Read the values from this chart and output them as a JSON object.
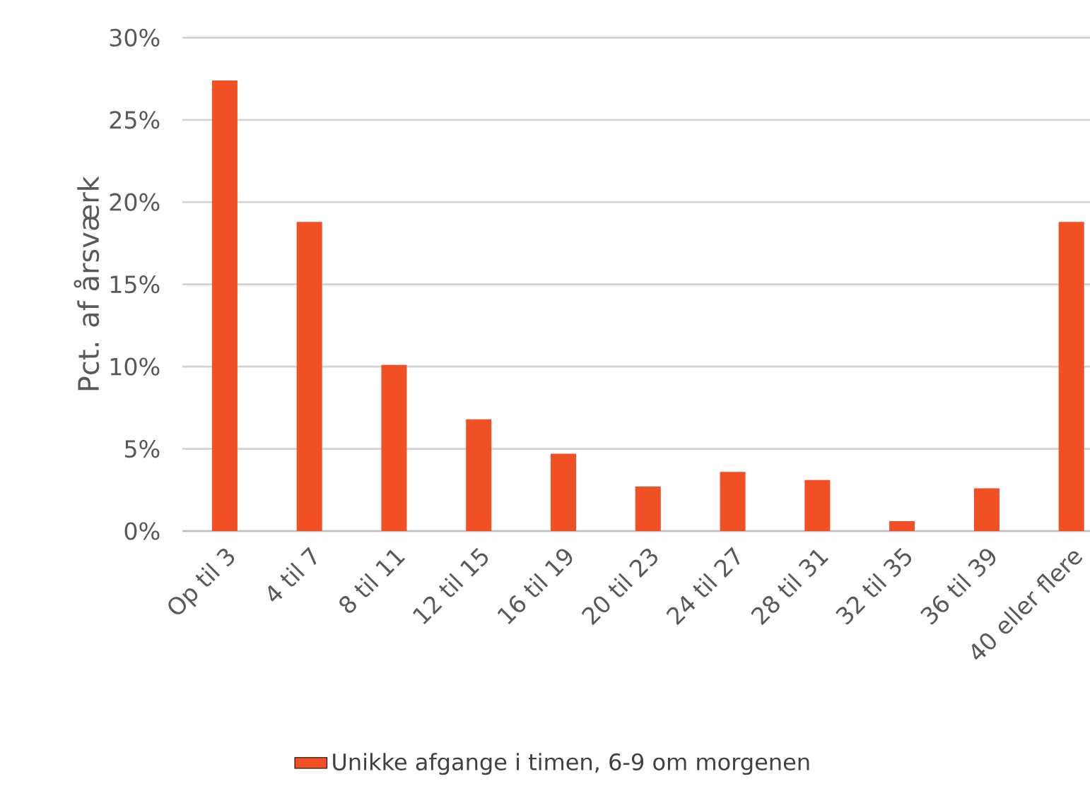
{
  "chart_data": {
    "type": "bar",
    "ylabel": "Pct. af årsværk",
    "categories": [
      "Op til 3",
      "4 til 7",
      "8 til 11",
      "12 til 15",
      "16 til 19",
      "20 til 23",
      "24 til 27",
      "28 til 31",
      "32 til 35",
      "36 til 39",
      "40 eller flere"
    ],
    "series": [
      {
        "name": "Unikke afgange i timen, 6-9 om morgenen",
        "color": "#f05023",
        "values": [
          27.4,
          18.8,
          10.1,
          6.8,
          4.7,
          2.7,
          3.6,
          3.1,
          0.6,
          2.6,
          18.8
        ]
      }
    ],
    "ylim": [
      0,
      30
    ],
    "yticks": [
      {
        "value": 0,
        "label": "0%"
      },
      {
        "value": 5,
        "label": "5%"
      },
      {
        "value": 10,
        "label": "10%"
      },
      {
        "value": 15,
        "label": "15%"
      },
      {
        "value": 20,
        "label": "20%"
      },
      {
        "value": 25,
        "label": "25%"
      },
      {
        "value": 30,
        "label": "30%"
      }
    ],
    "grid": "y",
    "legend": "bottom"
  }
}
